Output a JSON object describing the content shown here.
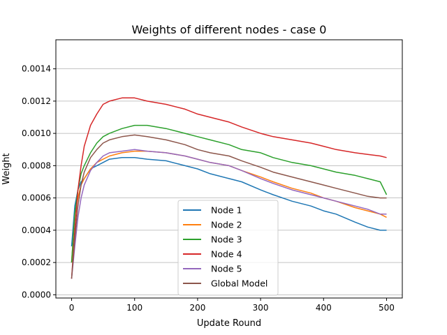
{
  "chart_data": {
    "type": "line",
    "title": "Weights of different nodes - case 0",
    "xlabel": "Update Round",
    "ylabel": "Weight",
    "xlim": [
      -25,
      525
    ],
    "ylim": [
      -2e-05,
      0.00158
    ],
    "xticks": [
      0,
      100,
      200,
      300,
      400,
      500
    ],
    "xtick_labels": [
      "0",
      "100",
      "200",
      "300",
      "400",
      "500"
    ],
    "yticks": [
      0.0,
      0.0002,
      0.0004,
      0.0006,
      0.0008,
      0.001,
      0.0012,
      0.0014
    ],
    "ytick_labels": [
      "0.0000",
      "0.0002",
      "0.0004",
      "0.0006",
      "0.0008",
      "0.0010",
      "0.0012",
      "0.0014"
    ],
    "grid": "horizontal",
    "legend_position": "lower-center",
    "series": [
      {
        "name": "Node 1",
        "color": "#1f77b4",
        "x": [
          0,
          5,
          10,
          15,
          20,
          30,
          40,
          50,
          60,
          80,
          100,
          120,
          150,
          180,
          200,
          220,
          250,
          270,
          300,
          320,
          350,
          380,
          400,
          420,
          450,
          470,
          490,
          500
        ],
        "y": [
          0.0003,
          0.00055,
          0.00065,
          0.0007,
          0.00072,
          0.00078,
          0.0008,
          0.00082,
          0.00084,
          0.00085,
          0.00085,
          0.00084,
          0.00083,
          0.0008,
          0.00078,
          0.00075,
          0.00072,
          0.0007,
          0.00065,
          0.00062,
          0.00058,
          0.00055,
          0.00052,
          0.0005,
          0.00045,
          0.00042,
          0.0004,
          0.0004
        ]
      },
      {
        "name": "Node 2",
        "color": "#ff7f0e",
        "x": [
          0,
          5,
          10,
          15,
          20,
          30,
          40,
          50,
          60,
          80,
          100,
          120,
          150,
          180,
          200,
          220,
          250,
          270,
          300,
          320,
          350,
          380,
          400,
          420,
          450,
          470,
          490,
          500
        ],
        "y": [
          0.0002,
          0.0005,
          0.0006,
          0.00068,
          0.00072,
          0.00078,
          0.00082,
          0.00084,
          0.00086,
          0.00088,
          0.00089,
          0.00089,
          0.00088,
          0.00086,
          0.00084,
          0.00082,
          0.0008,
          0.00077,
          0.00073,
          0.0007,
          0.00066,
          0.00063,
          0.0006,
          0.00058,
          0.00054,
          0.00052,
          0.0005,
          0.00048
        ]
      },
      {
        "name": "Node 3",
        "color": "#2ca02c",
        "x": [
          0,
          5,
          10,
          15,
          20,
          30,
          40,
          50,
          60,
          80,
          100,
          120,
          150,
          180,
          200,
          220,
          250,
          270,
          300,
          320,
          350,
          380,
          400,
          420,
          450,
          470,
          490,
          500
        ],
        "y": [
          0.0002,
          0.0005,
          0.00065,
          0.00075,
          0.0008,
          0.00088,
          0.00094,
          0.00098,
          0.001,
          0.00103,
          0.00105,
          0.00105,
          0.00103,
          0.001,
          0.00098,
          0.00096,
          0.00093,
          0.0009,
          0.00088,
          0.00085,
          0.00082,
          0.0008,
          0.00078,
          0.00076,
          0.00074,
          0.00072,
          0.0007,
          0.00062
        ]
      },
      {
        "name": "Node 4",
        "color": "#d62728",
        "x": [
          0,
          5,
          10,
          15,
          20,
          30,
          40,
          50,
          60,
          80,
          100,
          120,
          150,
          180,
          200,
          220,
          250,
          270,
          300,
          320,
          350,
          380,
          400,
          420,
          450,
          470,
          490,
          500
        ],
        "y": [
          0.0001,
          0.0004,
          0.00065,
          0.0008,
          0.00092,
          0.00105,
          0.00112,
          0.00118,
          0.0012,
          0.00122,
          0.00122,
          0.0012,
          0.00118,
          0.00115,
          0.00112,
          0.0011,
          0.00107,
          0.00104,
          0.001,
          0.00098,
          0.00096,
          0.00094,
          0.00092,
          0.0009,
          0.00088,
          0.00087,
          0.00086,
          0.00085
        ]
      },
      {
        "name": "Node 5",
        "color": "#9467bd",
        "x": [
          0,
          5,
          10,
          15,
          20,
          30,
          40,
          50,
          60,
          80,
          100,
          120,
          150,
          180,
          200,
          220,
          250,
          270,
          300,
          320,
          350,
          380,
          400,
          420,
          450,
          470,
          490,
          500
        ],
        "y": [
          0.0001,
          0.0003,
          0.00048,
          0.0006,
          0.00068,
          0.00077,
          0.00082,
          0.00086,
          0.00088,
          0.00089,
          0.0009,
          0.00089,
          0.00088,
          0.00086,
          0.00084,
          0.00082,
          0.0008,
          0.00077,
          0.00072,
          0.00069,
          0.00065,
          0.00062,
          0.0006,
          0.00058,
          0.00055,
          0.00053,
          0.0005,
          0.0005
        ]
      },
      {
        "name": "Global Model",
        "color": "#8c564b",
        "x": [
          0,
          5,
          10,
          15,
          20,
          30,
          40,
          50,
          60,
          80,
          100,
          120,
          150,
          180,
          200,
          220,
          250,
          270,
          300,
          320,
          350,
          380,
          400,
          420,
          450,
          470,
          490,
          500
        ],
        "y": [
          0.0001,
          0.00035,
          0.00055,
          0.00068,
          0.00076,
          0.00085,
          0.0009,
          0.00094,
          0.00096,
          0.00098,
          0.00099,
          0.00098,
          0.00096,
          0.00093,
          0.0009,
          0.00088,
          0.00086,
          0.00083,
          0.00079,
          0.00076,
          0.00073,
          0.0007,
          0.00068,
          0.00066,
          0.00063,
          0.00061,
          0.0006,
          0.0006
        ]
      }
    ]
  }
}
